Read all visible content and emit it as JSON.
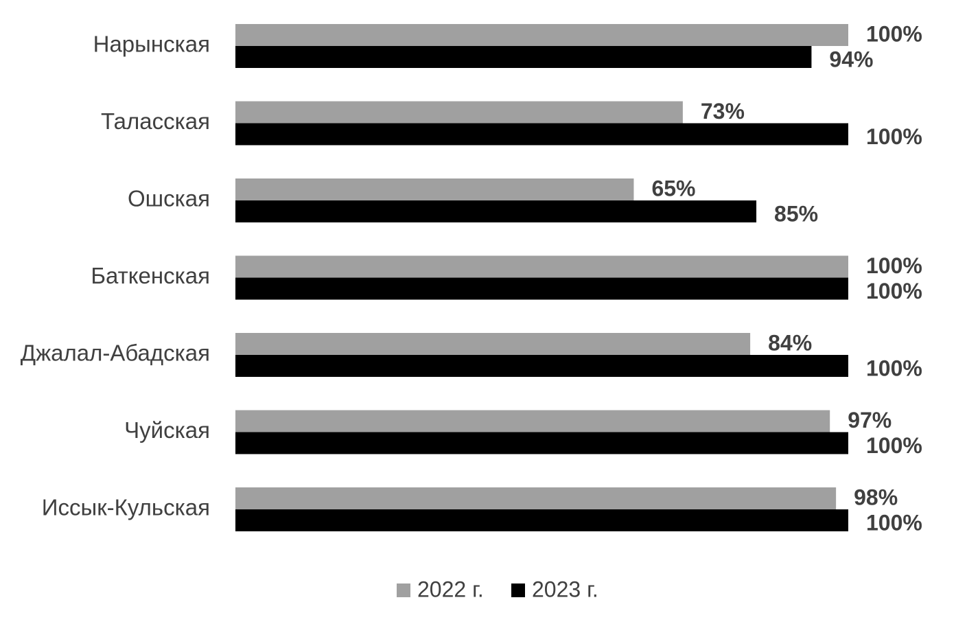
{
  "chart_data": {
    "type": "bar",
    "orientation": "horizontal",
    "categories": [
      "Нарынская",
      "Таласская",
      "Ошская",
      "Баткенская",
      "Джалал-Абадская",
      "Чуйская",
      "Иссык-Кульская"
    ],
    "series": [
      {
        "name": "2022 г.",
        "color": "#a0a0a0",
        "values": [
          100,
          73,
          65,
          100,
          84,
          97,
          98
        ]
      },
      {
        "name": "2023 г.",
        "color": "#000000",
        "values": [
          94,
          100,
          85,
          100,
          100,
          100,
          100
        ]
      }
    ],
    "value_suffix": "%",
    "xlim": [
      0,
      100
    ],
    "grid": false,
    "legend": "bottom"
  }
}
